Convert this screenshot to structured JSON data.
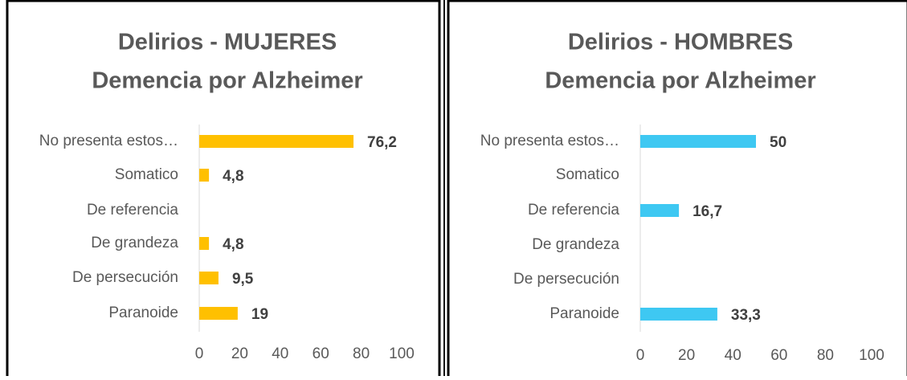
{
  "chart_data": [
    {
      "type": "bar",
      "title": [
        "Delirios - MUJERES",
        "Demencia por Alzheimer"
      ],
      "categories": [
        "No presenta estos…",
        "Somatico",
        "De referencia",
        "De grandeza",
        "De persecución",
        "Paranoide"
      ],
      "values": [
        76.2,
        4.8,
        0,
        4.8,
        9.5,
        19
      ],
      "value_labels": [
        "76,2",
        "4,8",
        null,
        "4,8",
        "9,5",
        "19"
      ],
      "color": "#ffc000",
      "xlim": [
        0,
        100
      ],
      "xticks": [
        0,
        20,
        40,
        60,
        80,
        100
      ]
    },
    {
      "type": "bar",
      "title": [
        "Delirios - HOMBRES",
        "Demencia por Alzheimer"
      ],
      "categories": [
        "No presenta estos…",
        "Somatico",
        "De referencia",
        "De grandeza",
        "De persecución",
        "Paranoide"
      ],
      "values": [
        50,
        0,
        16.7,
        0,
        0,
        33.3
      ],
      "value_labels": [
        "50",
        null,
        "16,7",
        null,
        null,
        "33,3"
      ],
      "color": "#3ec8f2",
      "xlim": [
        0,
        100
      ],
      "xticks": [
        0,
        20,
        40,
        60,
        80,
        100
      ]
    }
  ]
}
